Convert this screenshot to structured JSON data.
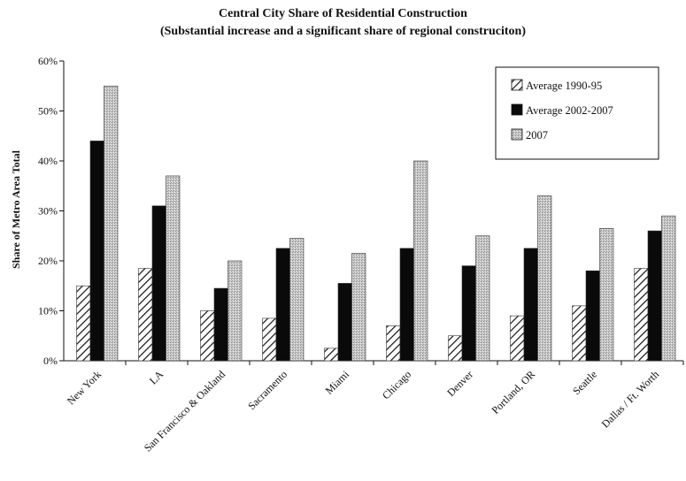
{
  "chart_data": {
    "type": "bar",
    "title": "Central City Share of Residential Construction",
    "subtitle": "(Substantial increase and a significant share of regional construciton)",
    "ylabel": "Share of Metro Area Total",
    "xlabel": "",
    "ylim": [
      0,
      60
    ],
    "yticks": [
      "0%",
      "10%",
      "20%",
      "30%",
      "40%",
      "50%",
      "60%"
    ],
    "categories": [
      "New York",
      "LA",
      "San Francisco & Oakland",
      "Sacramento",
      "Miami",
      "Chicago",
      "Denver",
      "Portland, OR",
      "Seattle",
      "Dallas / Ft. Worth"
    ],
    "series": [
      {
        "name": "Average 1990-95",
        "fill": "hatch",
        "values": [
          15,
          18.5,
          10,
          8.5,
          2.5,
          7,
          5,
          9,
          11,
          18.5
        ]
      },
      {
        "name": "Average 2002-2007",
        "fill": "solid-black",
        "values": [
          44,
          31,
          14.5,
          22.5,
          15.5,
          22.5,
          19,
          22.5,
          18,
          26
        ]
      },
      {
        "name": "2007",
        "fill": "light-gray-dots",
        "values": [
          55,
          37,
          20,
          24.5,
          21.5,
          40,
          25,
          33,
          26.5,
          29
        ]
      }
    ],
    "grid": false,
    "legend_position": "top-right"
  }
}
